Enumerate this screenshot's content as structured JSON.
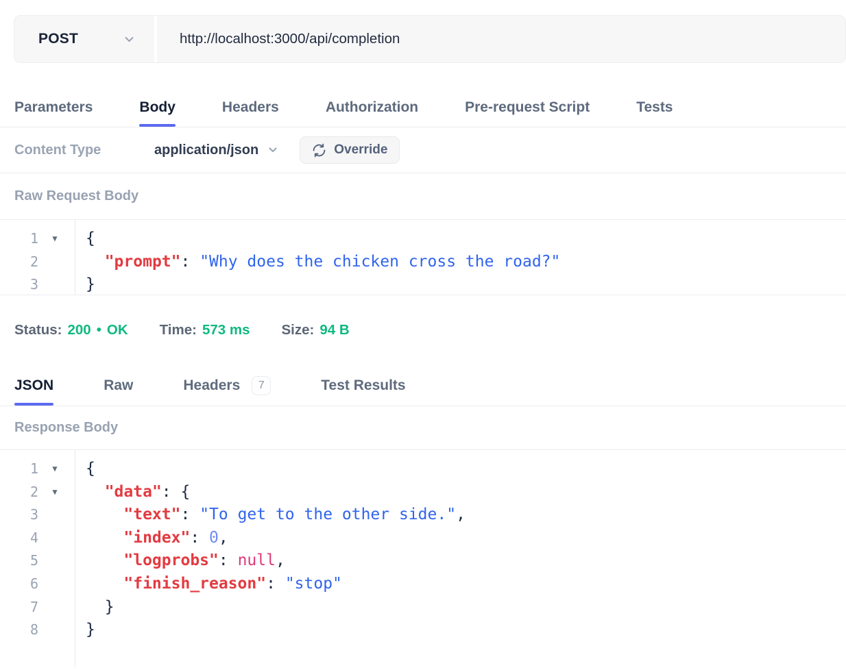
{
  "colors": {
    "accent": "#5b6af0",
    "success": "#0fb981",
    "code_key": "#e23b41",
    "code_string": "#3064ec",
    "code_number": "#6f8bf2",
    "code_null": "#dc3a78",
    "code_punct": "#1c2a45"
  },
  "request_bar": {
    "method": "POST",
    "url": "http://localhost:3000/api/completion"
  },
  "request_tabs": [
    {
      "label": "Parameters",
      "active": false
    },
    {
      "label": "Body",
      "active": true
    },
    {
      "label": "Headers",
      "active": false
    },
    {
      "label": "Authorization",
      "active": false
    },
    {
      "label": "Pre-request Script",
      "active": false
    },
    {
      "label": "Tests",
      "active": false
    }
  ],
  "content_type": {
    "label": "Content Type",
    "value": "application/json",
    "override_label": "Override"
  },
  "request_body": {
    "section_label": "Raw Request Body",
    "lines": [
      {
        "num": "1",
        "fold": true,
        "tokens": [
          [
            "punct",
            "{"
          ]
        ]
      },
      {
        "num": "2",
        "fold": false,
        "tokens": [
          [
            "punct",
            "  "
          ],
          [
            "key",
            "\"prompt\""
          ],
          [
            "punct",
            ": "
          ],
          [
            "str",
            "\"Why does the chicken cross the road?\""
          ]
        ]
      },
      {
        "num": "3",
        "fold": false,
        "tokens": [
          [
            "punct",
            "}"
          ]
        ]
      }
    ]
  },
  "status_bar": {
    "status_label": "Status:",
    "status_code": "200",
    "bullet": "•",
    "status_text": "OK",
    "time_label": "Time:",
    "time_value": "573 ms",
    "size_label": "Size:",
    "size_value": "94 B"
  },
  "response_tabs": [
    {
      "label": "JSON",
      "active": true
    },
    {
      "label": "Raw",
      "active": false
    },
    {
      "label": "Headers",
      "active": false,
      "badge": "7"
    },
    {
      "label": "Test Results",
      "active": false
    }
  ],
  "response_body": {
    "section_label": "Response Body",
    "lines": [
      {
        "num": "1",
        "fold": true,
        "tokens": [
          [
            "punct",
            "{"
          ]
        ]
      },
      {
        "num": "2",
        "fold": true,
        "tokens": [
          [
            "punct",
            "  "
          ],
          [
            "key",
            "\"data\""
          ],
          [
            "punct",
            ": {"
          ]
        ]
      },
      {
        "num": "3",
        "fold": false,
        "tokens": [
          [
            "punct",
            "    "
          ],
          [
            "key",
            "\"text\""
          ],
          [
            "punct",
            ": "
          ],
          [
            "str",
            "\"To get to the other side.\""
          ],
          [
            "punct",
            ","
          ]
        ]
      },
      {
        "num": "4",
        "fold": false,
        "tokens": [
          [
            "punct",
            "    "
          ],
          [
            "key",
            "\"index\""
          ],
          [
            "punct",
            ": "
          ],
          [
            "num",
            "0"
          ],
          [
            "punct",
            ","
          ]
        ]
      },
      {
        "num": "5",
        "fold": false,
        "tokens": [
          [
            "punct",
            "    "
          ],
          [
            "key",
            "\"logprobs\""
          ],
          [
            "punct",
            ": "
          ],
          [
            "null",
            "null"
          ],
          [
            "punct",
            ","
          ]
        ]
      },
      {
        "num": "6",
        "fold": false,
        "tokens": [
          [
            "punct",
            "    "
          ],
          [
            "key",
            "\"finish_reason\""
          ],
          [
            "punct",
            ": "
          ],
          [
            "str",
            "\"stop\""
          ]
        ]
      },
      {
        "num": "7",
        "fold": false,
        "tokens": [
          [
            "punct",
            "  }"
          ]
        ]
      },
      {
        "num": "8",
        "fold": false,
        "tokens": [
          [
            "punct",
            "}"
          ]
        ]
      }
    ]
  }
}
